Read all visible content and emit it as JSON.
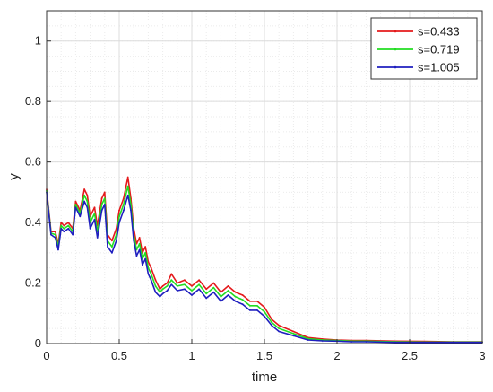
{
  "chart_data": {
    "type": "line",
    "title": "",
    "xlabel": "time",
    "ylabel": "y",
    "xlim": [
      0,
      3
    ],
    "ylim": [
      0,
      1.1
    ],
    "xticks": [
      "0",
      "0.5",
      "1",
      "1.5",
      "2",
      "2.5",
      "3"
    ],
    "yticks": [
      "0",
      "0.2",
      "0.4",
      "0.6",
      "0.8",
      "1"
    ],
    "grid": true,
    "minor_grid": true,
    "legend_position": "top-right",
    "x": [
      0,
      0.03,
      0.06,
      0.08,
      0.1,
      0.12,
      0.15,
      0.18,
      0.2,
      0.23,
      0.26,
      0.28,
      0.3,
      0.33,
      0.35,
      0.38,
      0.4,
      0.42,
      0.45,
      0.48,
      0.5,
      0.53,
      0.56,
      0.58,
      0.6,
      0.62,
      0.64,
      0.66,
      0.68,
      0.7,
      0.72,
      0.75,
      0.78,
      0.8,
      0.83,
      0.86,
      0.9,
      0.95,
      1.0,
      1.05,
      1.1,
      1.15,
      1.2,
      1.25,
      1.3,
      1.35,
      1.4,
      1.45,
      1.5,
      1.55,
      1.6,
      1.7,
      1.8,
      1.9,
      2.0,
      2.1,
      2.2,
      2.4,
      2.6,
      2.8,
      3.0
    ],
    "series": [
      {
        "name": "s=0.433",
        "color": "#e41a1c",
        "values": [
          0.51,
          0.37,
          0.37,
          0.33,
          0.4,
          0.39,
          0.4,
          0.38,
          0.47,
          0.44,
          0.51,
          0.49,
          0.42,
          0.45,
          0.39,
          0.48,
          0.5,
          0.36,
          0.34,
          0.38,
          0.44,
          0.48,
          0.55,
          0.48,
          0.38,
          0.33,
          0.35,
          0.3,
          0.32,
          0.27,
          0.25,
          0.21,
          0.18,
          0.19,
          0.2,
          0.23,
          0.2,
          0.21,
          0.19,
          0.21,
          0.18,
          0.2,
          0.17,
          0.19,
          0.17,
          0.16,
          0.14,
          0.14,
          0.12,
          0.08,
          0.06,
          0.04,
          0.02,
          0.015,
          0.012,
          0.01,
          0.01,
          0.008,
          0.007,
          0.006,
          0.006
        ]
      },
      {
        "name": "s=0.719",
        "color": "#22dd22",
        "values": [
          0.505,
          0.365,
          0.36,
          0.32,
          0.39,
          0.38,
          0.39,
          0.37,
          0.46,
          0.43,
          0.49,
          0.47,
          0.4,
          0.43,
          0.37,
          0.46,
          0.48,
          0.34,
          0.32,
          0.36,
          0.42,
          0.46,
          0.52,
          0.46,
          0.36,
          0.31,
          0.33,
          0.28,
          0.3,
          0.25,
          0.23,
          0.19,
          0.17,
          0.18,
          0.19,
          0.21,
          0.19,
          0.195,
          0.175,
          0.195,
          0.165,
          0.185,
          0.155,
          0.175,
          0.155,
          0.145,
          0.125,
          0.125,
          0.105,
          0.07,
          0.05,
          0.033,
          0.016,
          0.012,
          0.01,
          0.008,
          0.008,
          0.006,
          0.005,
          0.005,
          0.005
        ]
      },
      {
        "name": "s=1.005",
        "color": "#1f1fbf",
        "values": [
          0.5,
          0.36,
          0.35,
          0.31,
          0.38,
          0.37,
          0.38,
          0.36,
          0.45,
          0.42,
          0.47,
          0.45,
          0.38,
          0.41,
          0.35,
          0.44,
          0.46,
          0.32,
          0.3,
          0.34,
          0.4,
          0.44,
          0.49,
          0.44,
          0.34,
          0.29,
          0.31,
          0.26,
          0.28,
          0.23,
          0.21,
          0.17,
          0.155,
          0.165,
          0.175,
          0.195,
          0.175,
          0.18,
          0.16,
          0.18,
          0.15,
          0.17,
          0.14,
          0.16,
          0.14,
          0.13,
          0.11,
          0.11,
          0.09,
          0.06,
          0.04,
          0.026,
          0.012,
          0.009,
          0.008,
          0.006,
          0.006,
          0.004,
          0.004,
          0.004,
          0.004
        ]
      }
    ]
  }
}
